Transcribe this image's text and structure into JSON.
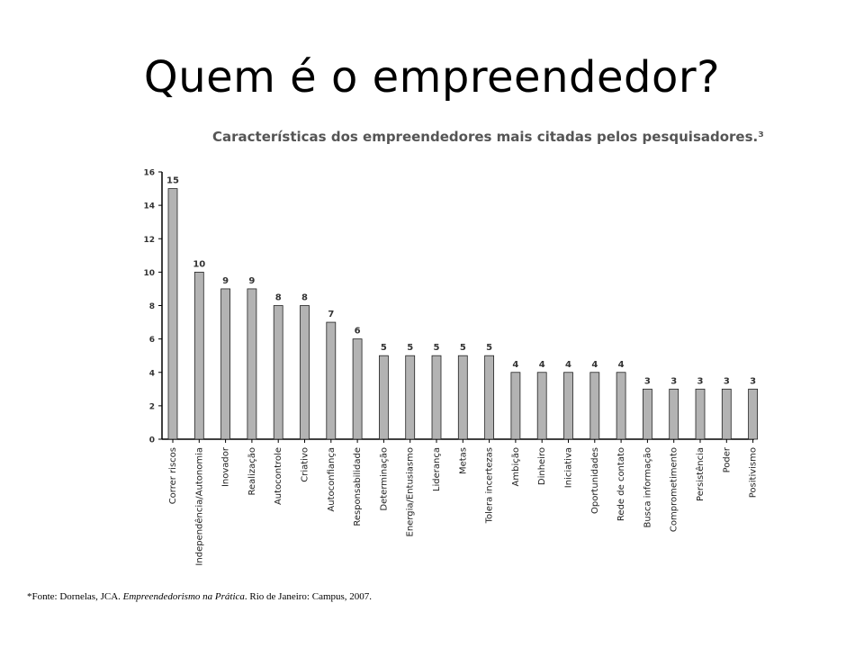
{
  "slide": {
    "title": "Quem é o empreendedor?",
    "footnote": {
      "prefix": "*Fonte: Dornelas, JCA. ",
      "book": "Empreendedorismo na Prática",
      "suffix": ". Rio de Janeiro: Campus, 2007."
    }
  },
  "chart_data": {
    "type": "bar",
    "title": "Características dos empreendedores mais citadas pelos pesquisadores.³",
    "xlabel": "",
    "ylabel": "",
    "ylim": [
      0,
      16
    ],
    "yticks": [
      0,
      2,
      4,
      6,
      8,
      10,
      12,
      14,
      16
    ],
    "grid": false,
    "bar_color": "#b3b3b3",
    "categories": [
      "Correr riscos",
      "Independência/Autonomia",
      "Inovador",
      "Realização",
      "Autocontrole",
      "Criativo",
      "Autoconfiança",
      "Responsabilidade",
      "Determinação",
      "Energia/Entusiasmo",
      "Liderança",
      "Metas",
      "Tolera incertezas",
      "Ambição",
      "Dinheiro",
      "Iniciativa",
      "Oportunidades",
      "Rede de contato",
      "Busca informação",
      "Comprometimento",
      "Persistência",
      "Poder",
      "Positivismo"
    ],
    "values": [
      15,
      10,
      9,
      9,
      8,
      8,
      7,
      6,
      5,
      5,
      5,
      5,
      5,
      4,
      4,
      4,
      4,
      4,
      3,
      3,
      3,
      3,
      3
    ]
  }
}
